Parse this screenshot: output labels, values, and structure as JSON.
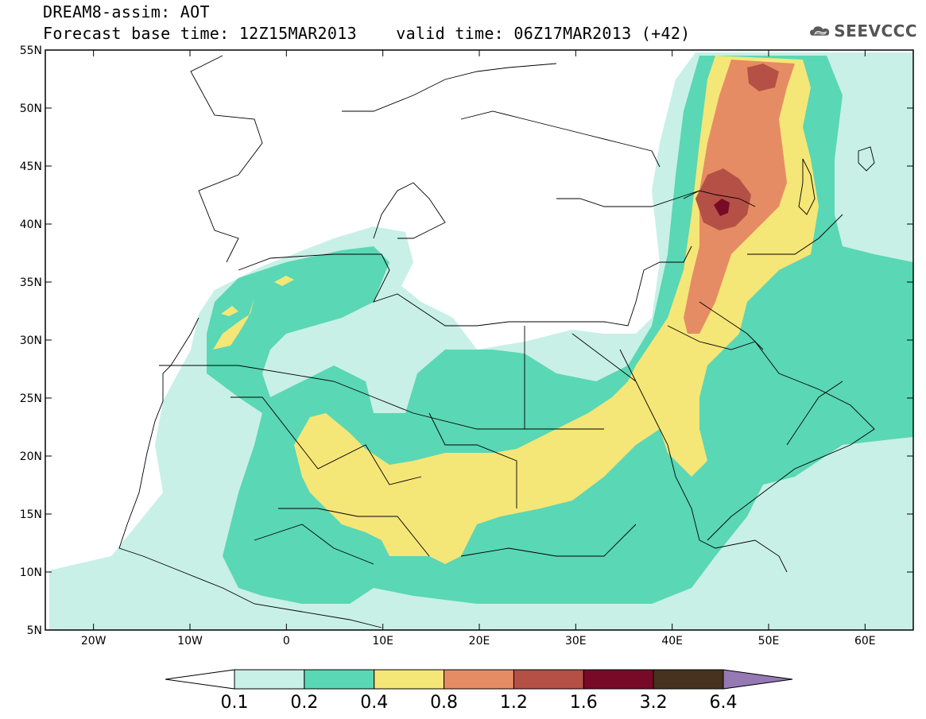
{
  "header": {
    "line1": "DREAM8-assim: AOT",
    "line2": "Forecast base time: 12Z15MAR2013    valid time: 06Z17MAR2013 (+42)"
  },
  "logo": {
    "text": "SEEVCCC",
    "icon": "cloud-icon"
  },
  "map": {
    "variable": "AOT",
    "projection": "lat-lon",
    "lon_range": [
      -25,
      65
    ],
    "lat_range": [
      5,
      55
    ],
    "x_ticks": [
      "20W",
      "10W",
      "0",
      "10E",
      "20E",
      "30E",
      "40E",
      "50E",
      "60E"
    ],
    "y_ticks": [
      "55N",
      "50N",
      "45N",
      "40N",
      "35N",
      "30N",
      "25N",
      "20N",
      "15N",
      "10N",
      "5N"
    ]
  },
  "colorbar": {
    "levels": [
      "0.1",
      "0.2",
      "0.4",
      "0.8",
      "1.2",
      "1.6",
      "3.2",
      "6.4"
    ],
    "colors": [
      "#ffffff",
      "#c8f0e6",
      "#5ad7b4",
      "#f5e678",
      "#e68c64",
      "#b45046",
      "#780a28",
      "#46321e",
      "#9678b4"
    ]
  }
}
